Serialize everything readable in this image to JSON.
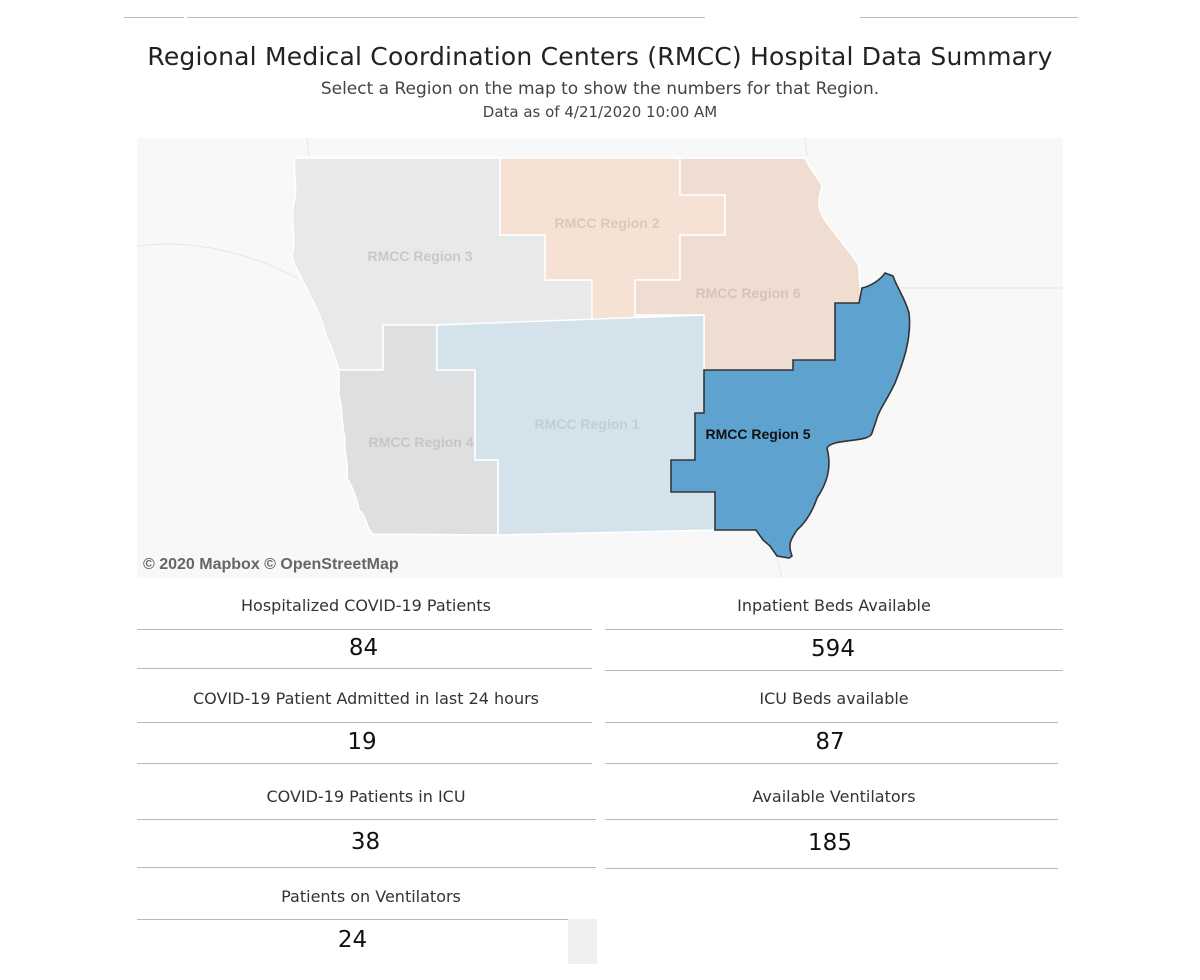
{
  "header": {
    "title": "Regional Medical Coordination Centers (RMCC) Hospital Data Summary",
    "subtitle": "Select a Region on the map to show the numbers for that Region.",
    "data_as_of": "Data as of 4/21/2020 10:00 AM"
  },
  "map": {
    "attribution": "© 2020 Mapbox © OpenStreetMap",
    "selected_region": "RMCC Region 5",
    "regions": [
      {
        "name": "RMCC Region 3",
        "color": "#e8e9ea"
      },
      {
        "name": "RMCC Region 2",
        "color": "#f5e2d4"
      },
      {
        "name": "RMCC Region 6",
        "color": "#f0ddd2"
      },
      {
        "name": "RMCC Region 1",
        "color": "#d3e2eb"
      },
      {
        "name": "RMCC Region 4",
        "color": "#dedfe0"
      },
      {
        "name": "RMCC Region 5",
        "color": "#5ea3cf"
      }
    ]
  },
  "metrics": {
    "hospitalized": {
      "label": "Hospitalized COVID-19 Patients",
      "value": "84"
    },
    "admitted_24h": {
      "label": "COVID-19 Patient Admitted in last 24 hours",
      "value": "19"
    },
    "icu_patients": {
      "label": "COVID-19 Patients in ICU",
      "value": "38"
    },
    "on_ventilators": {
      "label": "Patients on Ventilators",
      "value": "24"
    },
    "inpatient_beds": {
      "label": "Inpatient Beds Available",
      "value": "594"
    },
    "icu_beds": {
      "label": "ICU Beds available",
      "value": "87"
    },
    "available_ventilators": {
      "label": "Available Ventilators",
      "value": "185"
    }
  }
}
